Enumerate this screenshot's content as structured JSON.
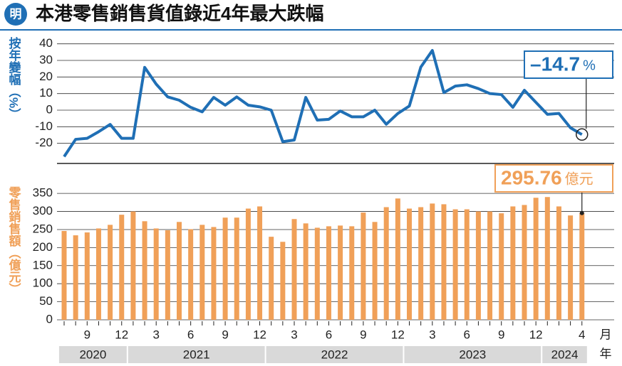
{
  "title": "本港零售銷售貨值錄近4年最大跌幅",
  "logo": "明",
  "x_axis": {
    "month_unit": "月",
    "year_unit": "年",
    "groups": [
      {
        "label": "2020",
        "categories": [
          null,
          null,
          "9",
          null,
          null,
          "12"
        ]
      },
      {
        "label": "2021",
        "categories": [
          null,
          null,
          "3",
          null,
          null,
          "6",
          null,
          null,
          "9",
          null,
          null,
          "12"
        ]
      },
      {
        "label": "2022",
        "categories": [
          null,
          null,
          "3",
          null,
          null,
          "6",
          null,
          null,
          "9",
          null,
          null,
          "12"
        ]
      },
      {
        "label": "2023",
        "categories": [
          null,
          null,
          "3",
          null,
          null,
          "6",
          null,
          null,
          "9",
          null,
          null,
          "12"
        ]
      },
      {
        "label": "2024",
        "categories": [
          null,
          null,
          null,
          "4"
        ]
      }
    ]
  },
  "chart_data": [
    {
      "type": "line",
      "y_label": "按年變幅（%）",
      "color": "#1f6fb5",
      "grid": true,
      "ylim": [
        -30,
        45
      ],
      "yticks": [
        -20,
        -10,
        0,
        10,
        20,
        30,
        40
      ],
      "values": [
        -28,
        -17.6,
        -17,
        -13,
        -8.6,
        -17,
        -17,
        25.8,
        15.7,
        8,
        6,
        1.7,
        -1,
        7.7,
        3,
        8,
        3,
        2,
        0,
        -19,
        -18,
        7.7,
        -6,
        -5.5,
        -0.5,
        -4,
        -4,
        0,
        -8.5,
        -2,
        2.5,
        26,
        36,
        10.6,
        14.5,
        15.3,
        13,
        10,
        9.4,
        1.7,
        12,
        4.7,
        -2.5,
        -2,
        -10.6,
        -14.7
      ],
      "value_labels": [
        null,
        null,
        null,
        null,
        null,
        null,
        null,
        null,
        null,
        null,
        null,
        null,
        null,
        null,
        null,
        null,
        null,
        null,
        null,
        null,
        null,
        null,
        null,
        null,
        null,
        null,
        null,
        null,
        null,
        null,
        null,
        null,
        null,
        null,
        null,
        null,
        null,
        null,
        null,
        null,
        null,
        null,
        null,
        null,
        null,
        "–14.7"
      ],
      "value_label_unit": "%"
    },
    {
      "type": "bar",
      "y_label": "零售銷售額（億元）",
      "color": "#f0a058",
      "grid": true,
      "ylim": [
        0,
        370
      ],
      "yticks": [
        0,
        50,
        100,
        150,
        200,
        250,
        300,
        350
      ],
      "values": [
        246,
        234,
        242,
        253,
        263,
        291,
        300,
        273,
        253,
        248,
        271,
        251,
        263,
        257,
        283,
        283,
        308,
        314,
        230,
        216,
        279,
        267,
        255,
        259,
        261,
        259,
        297,
        271,
        312,
        336,
        308,
        312,
        322,
        320,
        306,
        306,
        300,
        300,
        295,
        314,
        318,
        338,
        340,
        314,
        289,
        295.76
      ],
      "value_labels": [
        null,
        null,
        null,
        null,
        null,
        null,
        null,
        null,
        null,
        null,
        null,
        null,
        null,
        null,
        null,
        null,
        null,
        null,
        null,
        null,
        null,
        null,
        null,
        null,
        null,
        null,
        null,
        null,
        null,
        null,
        null,
        null,
        null,
        null,
        null,
        null,
        null,
        null,
        null,
        null,
        null,
        null,
        null,
        null,
        null,
        "295.76"
      ],
      "value_label_unit": "億元"
    }
  ]
}
